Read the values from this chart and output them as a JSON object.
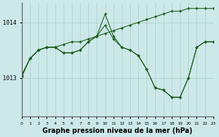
{
  "background_color": "#cce8e8",
  "grid_color": "#aacccc",
  "line_color": "#1a5c1a",
  "xlabel": "Graphe pression niveau de la mer (hPa)",
  "xlabel_fontsize": 7,
  "yticks": [
    1013,
    1014
  ],
  "ylim": [
    1012.3,
    1014.35
  ],
  "xlim": [
    0,
    23
  ],
  "xticks": [
    0,
    1,
    2,
    3,
    4,
    5,
    6,
    7,
    8,
    9,
    10,
    11,
    12,
    13,
    14,
    15,
    16,
    17,
    18,
    19,
    20,
    21,
    22,
    23
  ],
  "line1_x": [
    0,
    1,
    2,
    3,
    4,
    5,
    6,
    7,
    8,
    9,
    10,
    11,
    12,
    13,
    14,
    15,
    16,
    17,
    18,
    19,
    20,
    21,
    22,
    23
  ],
  "line1_y": [
    1013.05,
    1013.35,
    1013.5,
    1013.55,
    1013.55,
    1013.6,
    1013.65,
    1013.65,
    1013.7,
    1013.75,
    1013.8,
    1013.85,
    1013.9,
    1013.95,
    1014.0,
    1014.05,
    1014.1,
    1014.15,
    1014.2,
    1014.2,
    1014.25,
    1014.25,
    1014.25,
    1014.25
  ],
  "line2_x": [
    0,
    1,
    2,
    3,
    4,
    5,
    6,
    7,
    8,
    9,
    10,
    11,
    12,
    13,
    14,
    15,
    16,
    17,
    18,
    19,
    20,
    21,
    22,
    23
  ],
  "line2_y": [
    1013.05,
    1013.35,
    1013.5,
    1013.55,
    1013.55,
    1013.45,
    1013.45,
    1013.5,
    1013.65,
    1013.75,
    1013.95,
    1013.7,
    1013.55,
    1013.5,
    1013.4,
    1013.15,
    1012.82,
    1012.78,
    1012.65,
    1012.65,
    1013.0,
    1013.55,
    1013.65,
    1013.65
  ],
  "line3_x": [
    0,
    1,
    2,
    3,
    4,
    5,
    6,
    7,
    8,
    9,
    10,
    11,
    12,
    13,
    14,
    15,
    16,
    17,
    18,
    19,
    20,
    21,
    22,
    23
  ],
  "line3_y": [
    1013.02,
    1013.35,
    1013.5,
    1013.55,
    1013.55,
    1013.45,
    1013.45,
    1013.5,
    1013.65,
    1013.75,
    1014.15,
    1013.75,
    1013.55,
    1013.5,
    1013.4,
    1013.15,
    1012.82,
    1012.78,
    1012.65,
    1012.65,
    1013.0,
    1013.55,
    1013.65,
    1013.65
  ]
}
